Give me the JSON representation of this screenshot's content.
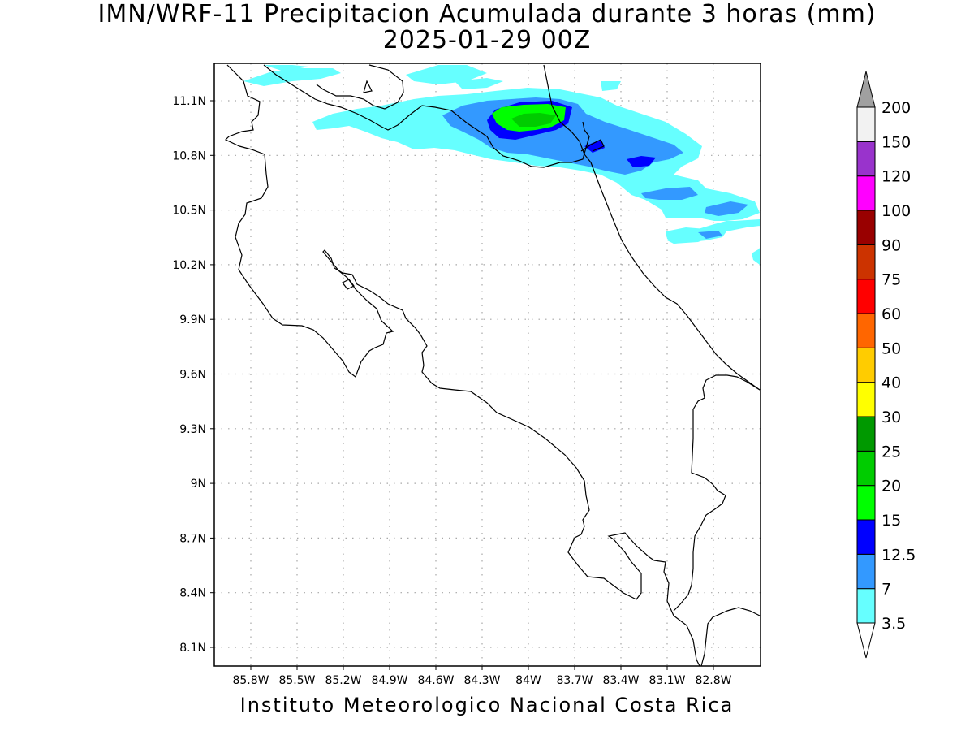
{
  "title": {
    "line1": "IMN/WRF-11 Precipitacion Acumulada durante 3 horas (mm)",
    "line2": "2025-01-29 00Z"
  },
  "footer": "Instituto Meteorologico Nacional Costa Rica",
  "map": {
    "lon_range": [
      -86.0,
      -82.6
    ],
    "lat_range": [
      8.0,
      11.3
    ],
    "lon_ticks": [
      {
        "value": -85.8,
        "label": "85.8W"
      },
      {
        "value": -85.5,
        "label": "85.5W"
      },
      {
        "value": -85.2,
        "label": "85.2W"
      },
      {
        "value": -84.9,
        "label": "84.9W"
      },
      {
        "value": -84.6,
        "label": "84.6W"
      },
      {
        "value": -84.3,
        "label": "84.3W"
      },
      {
        "value": -84.0,
        "label": "84W"
      },
      {
        "value": -83.7,
        "label": "83.7W"
      },
      {
        "value": -83.4,
        "label": "83.4W"
      },
      {
        "value": -83.1,
        "label": "83.1W"
      },
      {
        "value": -82.8,
        "label": "82.8W"
      }
    ],
    "lat_ticks": [
      {
        "value": 11.1,
        "label": "11.1N"
      },
      {
        "value": 10.8,
        "label": "10.8N"
      },
      {
        "value": 10.5,
        "label": "10.5N"
      },
      {
        "value": 10.2,
        "label": "10.2N"
      },
      {
        "value": 9.9,
        "label": "9.9N"
      },
      {
        "value": 9.6,
        "label": "9.6N"
      },
      {
        "value": 9.3,
        "label": "9.3N"
      },
      {
        "value": 9.0,
        "label": "9N"
      },
      {
        "value": 8.7,
        "label": "8.7N"
      },
      {
        "value": 8.4,
        "label": "8.4N"
      },
      {
        "value": 8.1,
        "label": "8.1N"
      }
    ],
    "grid": true
  },
  "colorbar": {
    "labels": [
      "3.5",
      "7",
      "12.5",
      "15",
      "20",
      "25",
      "30",
      "40",
      "50",
      "60",
      "75",
      "90",
      "100",
      "120",
      "150",
      "200"
    ],
    "colors": [
      "#66ffff",
      "#3399ff",
      "#0000ff",
      "#00ff00",
      "#00cc00",
      "#009900",
      "#ffff00",
      "#ffcc00",
      "#ff6600",
      "#ff0000",
      "#cc3300",
      "#990000",
      "#ff00ff",
      "#9933cc",
      "#f2f2f2"
    ],
    "over_color": "#a0a0a0",
    "under_color": "#ffffff"
  },
  "colors": {
    "coast": "#000000",
    "grid": "#a8a8a8"
  }
}
